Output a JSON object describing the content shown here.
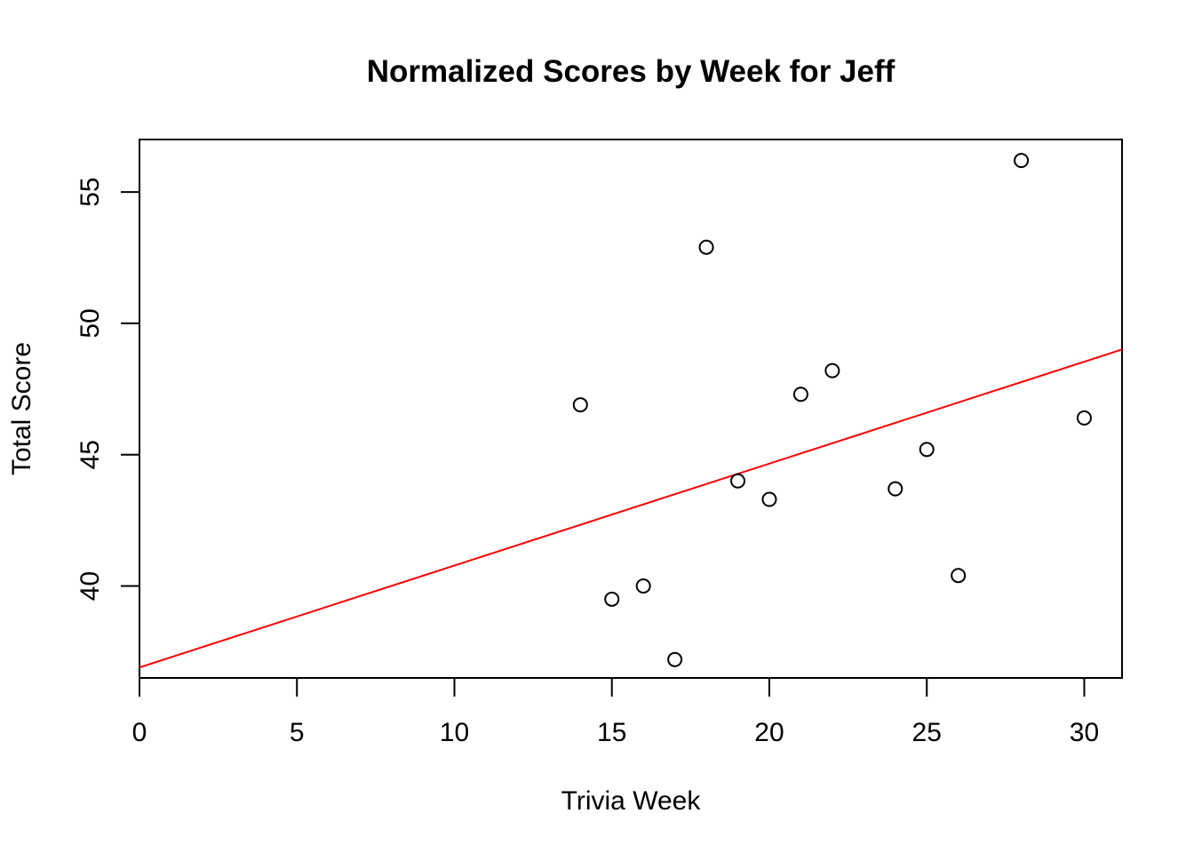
{
  "chart_data": {
    "type": "scatter",
    "title": "Normalized Scores by Week for Jeff",
    "xlabel": "Trivia Week",
    "ylabel": "Total Score",
    "xlim": [
      0,
      31.2
    ],
    "ylim": [
      36.5,
      57
    ],
    "x_ticks": [
      0,
      5,
      10,
      15,
      20,
      25,
      30
    ],
    "y_ticks": [
      40,
      45,
      50,
      55
    ],
    "grid": false,
    "legend": "none",
    "series": [
      {
        "x": [
          14,
          15,
          16,
          17,
          18,
          19,
          20,
          21,
          22,
          24,
          25,
          26,
          28,
          30
        ],
        "y": [
          46.9,
          39.5,
          40.0,
          37.2,
          52.9,
          44.0,
          43.3,
          47.3,
          48.2,
          43.7,
          45.2,
          40.4,
          56.2,
          46.4
        ],
        "marker": "open-circle",
        "color": "#000000"
      }
    ],
    "fit_line": {
      "intercept": 36.9,
      "slope": 0.388,
      "color": "#ff0000"
    }
  }
}
